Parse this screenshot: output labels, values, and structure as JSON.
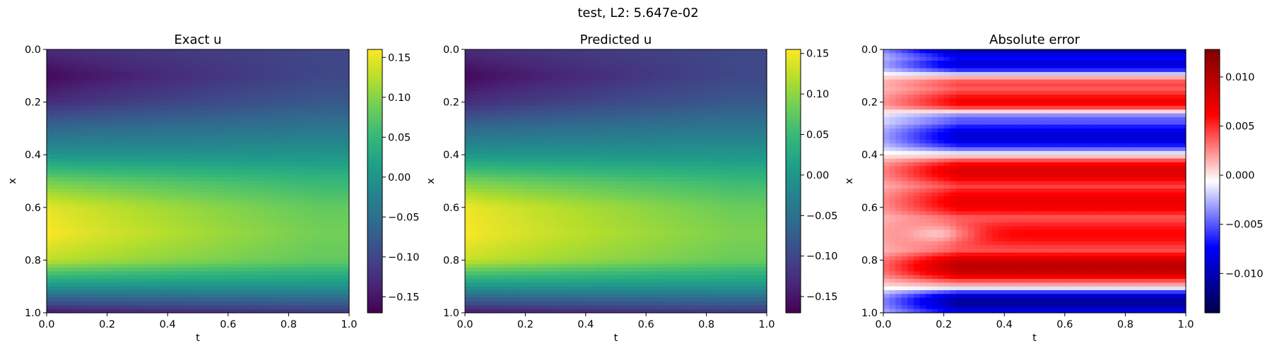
{
  "figure": {
    "suptitle": "test, L2: 5.647e-02"
  },
  "chart_data": [
    {
      "type": "heatmap",
      "title": "Exact u",
      "xlabel": "t",
      "ylabel": "x",
      "xlim": [
        0.0,
        1.0
      ],
      "ylim": [
        1.0,
        0.0
      ],
      "xticks": [
        "0.0",
        "0.2",
        "0.4",
        "0.6",
        "0.8",
        "1.0"
      ],
      "yticks": [
        "0.0",
        "0.2",
        "0.4",
        "0.6",
        "0.8",
        "1.0"
      ],
      "colormap": "viridis",
      "colorbar": {
        "range": [
          -0.17,
          0.16
        ],
        "ticks": [
          0.15,
          0.1,
          0.05,
          0.0,
          -0.05,
          -0.1,
          -0.15
        ],
        "tick_labels": [
          "0.15",
          "0.10",
          "0.05",
          "0.00",
          "−0.05",
          "−0.10",
          "−0.15"
        ]
      },
      "profile": {
        "x": [
          0.0,
          0.1,
          0.2,
          0.3,
          0.4,
          0.5,
          0.6,
          0.7,
          0.8,
          0.9,
          1.0
        ],
        "u_at_t0": [
          -0.13,
          -0.165,
          -0.13,
          -0.06,
          0.0,
          0.09,
          0.15,
          0.16,
          0.13,
          0.0,
          -0.15
        ],
        "u_at_t1": [
          -0.1,
          -0.1,
          -0.08,
          -0.04,
          0.0,
          0.05,
          0.08,
          0.09,
          0.08,
          0.0,
          -0.12
        ]
      }
    },
    {
      "type": "heatmap",
      "title": "Predicted u",
      "xlabel": "t",
      "ylabel": "x",
      "xlim": [
        0.0,
        1.0
      ],
      "ylim": [
        1.0,
        0.0
      ],
      "xticks": [
        "0.0",
        "0.2",
        "0.4",
        "0.6",
        "0.8",
        "1.0"
      ],
      "yticks": [
        "0.0",
        "0.2",
        "0.4",
        "0.6",
        "0.8",
        "1.0"
      ],
      "colormap": "viridis",
      "colorbar": {
        "range": [
          -0.17,
          0.155
        ],
        "ticks": [
          0.15,
          0.1,
          0.05,
          0.0,
          -0.05,
          -0.1,
          -0.15
        ],
        "tick_labels": [
          "0.15",
          "0.10",
          "0.05",
          "0.00",
          "−0.05",
          "−0.10",
          "−0.15"
        ]
      },
      "profile": {
        "x": [
          0.0,
          0.1,
          0.2,
          0.3,
          0.4,
          0.5,
          0.6,
          0.7,
          0.8,
          0.9,
          1.0
        ],
        "u_at_t0": [
          -0.13,
          -0.165,
          -0.13,
          -0.06,
          0.0,
          0.09,
          0.15,
          0.155,
          0.13,
          0.0,
          -0.15
        ],
        "u_at_t1": [
          -0.1,
          -0.1,
          -0.08,
          -0.04,
          0.0,
          0.05,
          0.08,
          0.09,
          0.08,
          0.0,
          -0.12
        ]
      }
    },
    {
      "type": "heatmap",
      "title": "Absolute error",
      "xlabel": "t",
      "ylabel": "x",
      "xlim": [
        0.0,
        1.0
      ],
      "ylim": [
        1.0,
        0.0
      ],
      "xticks": [
        "0.0",
        "0.2",
        "0.4",
        "0.6",
        "0.8",
        "1.0"
      ],
      "yticks": [
        "0.0",
        "0.2",
        "0.4",
        "0.6",
        "0.8",
        "1.0"
      ],
      "colormap": "seismic",
      "colorbar": {
        "range": [
          -0.014,
          0.0128
        ],
        "ticks": [
          0.01,
          0.005,
          0.0,
          -0.005,
          -0.01
        ],
        "tick_labels": [
          "0.010",
          "0.005",
          "0.000",
          "−0.005",
          "−0.010"
        ]
      },
      "bands": {
        "x_center": [
          0.03,
          0.15,
          0.33,
          0.47,
          0.58,
          0.72,
          0.84,
          0.97
        ],
        "value": [
          -0.013,
          0.007,
          -0.009,
          0.008,
          0.007,
          0.006,
          0.01,
          -0.012
        ]
      }
    }
  ],
  "colors": {
    "axes_edge": "#000000",
    "background": "#ffffff"
  }
}
